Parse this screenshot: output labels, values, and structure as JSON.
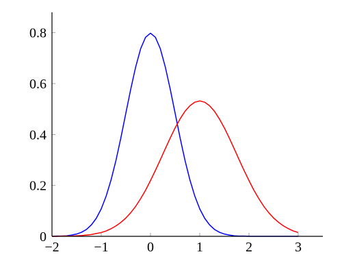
{
  "chart_data": {
    "type": "line",
    "x": [
      -2,
      -1.9,
      -1.8,
      -1.7,
      -1.6,
      -1.5,
      -1.4,
      -1.3,
      -1.2,
      -1.1,
      -1,
      -0.9,
      -0.8,
      -0.7,
      -0.6,
      -0.5,
      -0.4,
      -0.3,
      -0.2,
      -0.1,
      0,
      0.1,
      0.2,
      0.3,
      0.4,
      0.5,
      0.6,
      0.7,
      0.8,
      0.9,
      1,
      1.1,
      1.2,
      1.3,
      1.4,
      1.5,
      1.6,
      1.7,
      1.8,
      1.9,
      2,
      2.1,
      2.2,
      2.3,
      2.4,
      2.5,
      2.6,
      2.7,
      2.8,
      2.9,
      3
    ],
    "series": [
      {
        "color": "#0000ff",
        "values": [
          0,
          0.001,
          0.001,
          0.002,
          0.005,
          0.009,
          0.016,
          0.027,
          0.045,
          0.071,
          0.108,
          0.158,
          0.222,
          0.299,
          0.388,
          0.484,
          0.579,
          0.666,
          0.737,
          0.782,
          0.798,
          0.782,
          0.737,
          0.666,
          0.579,
          0.484,
          0.388,
          0.299,
          0.222,
          0.158,
          0.108,
          0.071,
          0.045,
          0.027,
          0.016,
          0.009,
          0.005,
          0.002,
          0.001,
          0.001,
          0,
          0,
          0,
          0,
          0,
          0,
          0,
          0,
          0,
          0,
          0
        ]
      },
      {
        "color": "#ff0000",
        "values": [
          0,
          0,
          0.001,
          0.001,
          0.001,
          0.002,
          0.003,
          0.005,
          0.007,
          0.011,
          0.015,
          0.021,
          0.03,
          0.041,
          0.055,
          0.072,
          0.093,
          0.118,
          0.148,
          0.181,
          0.219,
          0.259,
          0.301,
          0.344,
          0.386,
          0.426,
          0.461,
          0.491,
          0.513,
          0.527,
          0.532,
          0.527,
          0.513,
          0.491,
          0.461,
          0.426,
          0.386,
          0.344,
          0.301,
          0.259,
          0.219,
          0.181,
          0.148,
          0.118,
          0.093,
          0.072,
          0.055,
          0.041,
          0.03,
          0.021,
          0.015
        ]
      }
    ],
    "xlim": [
      -2,
      3.5
    ],
    "ylim": [
      0,
      0.88
    ],
    "xticks": [
      {
        "value": -2,
        "label": "−2"
      },
      {
        "value": -1,
        "label": "−1"
      },
      0,
      1,
      2,
      3
    ],
    "yticks": [
      0,
      0.2,
      0.4,
      0.6,
      0.8
    ],
    "grid": false
  }
}
